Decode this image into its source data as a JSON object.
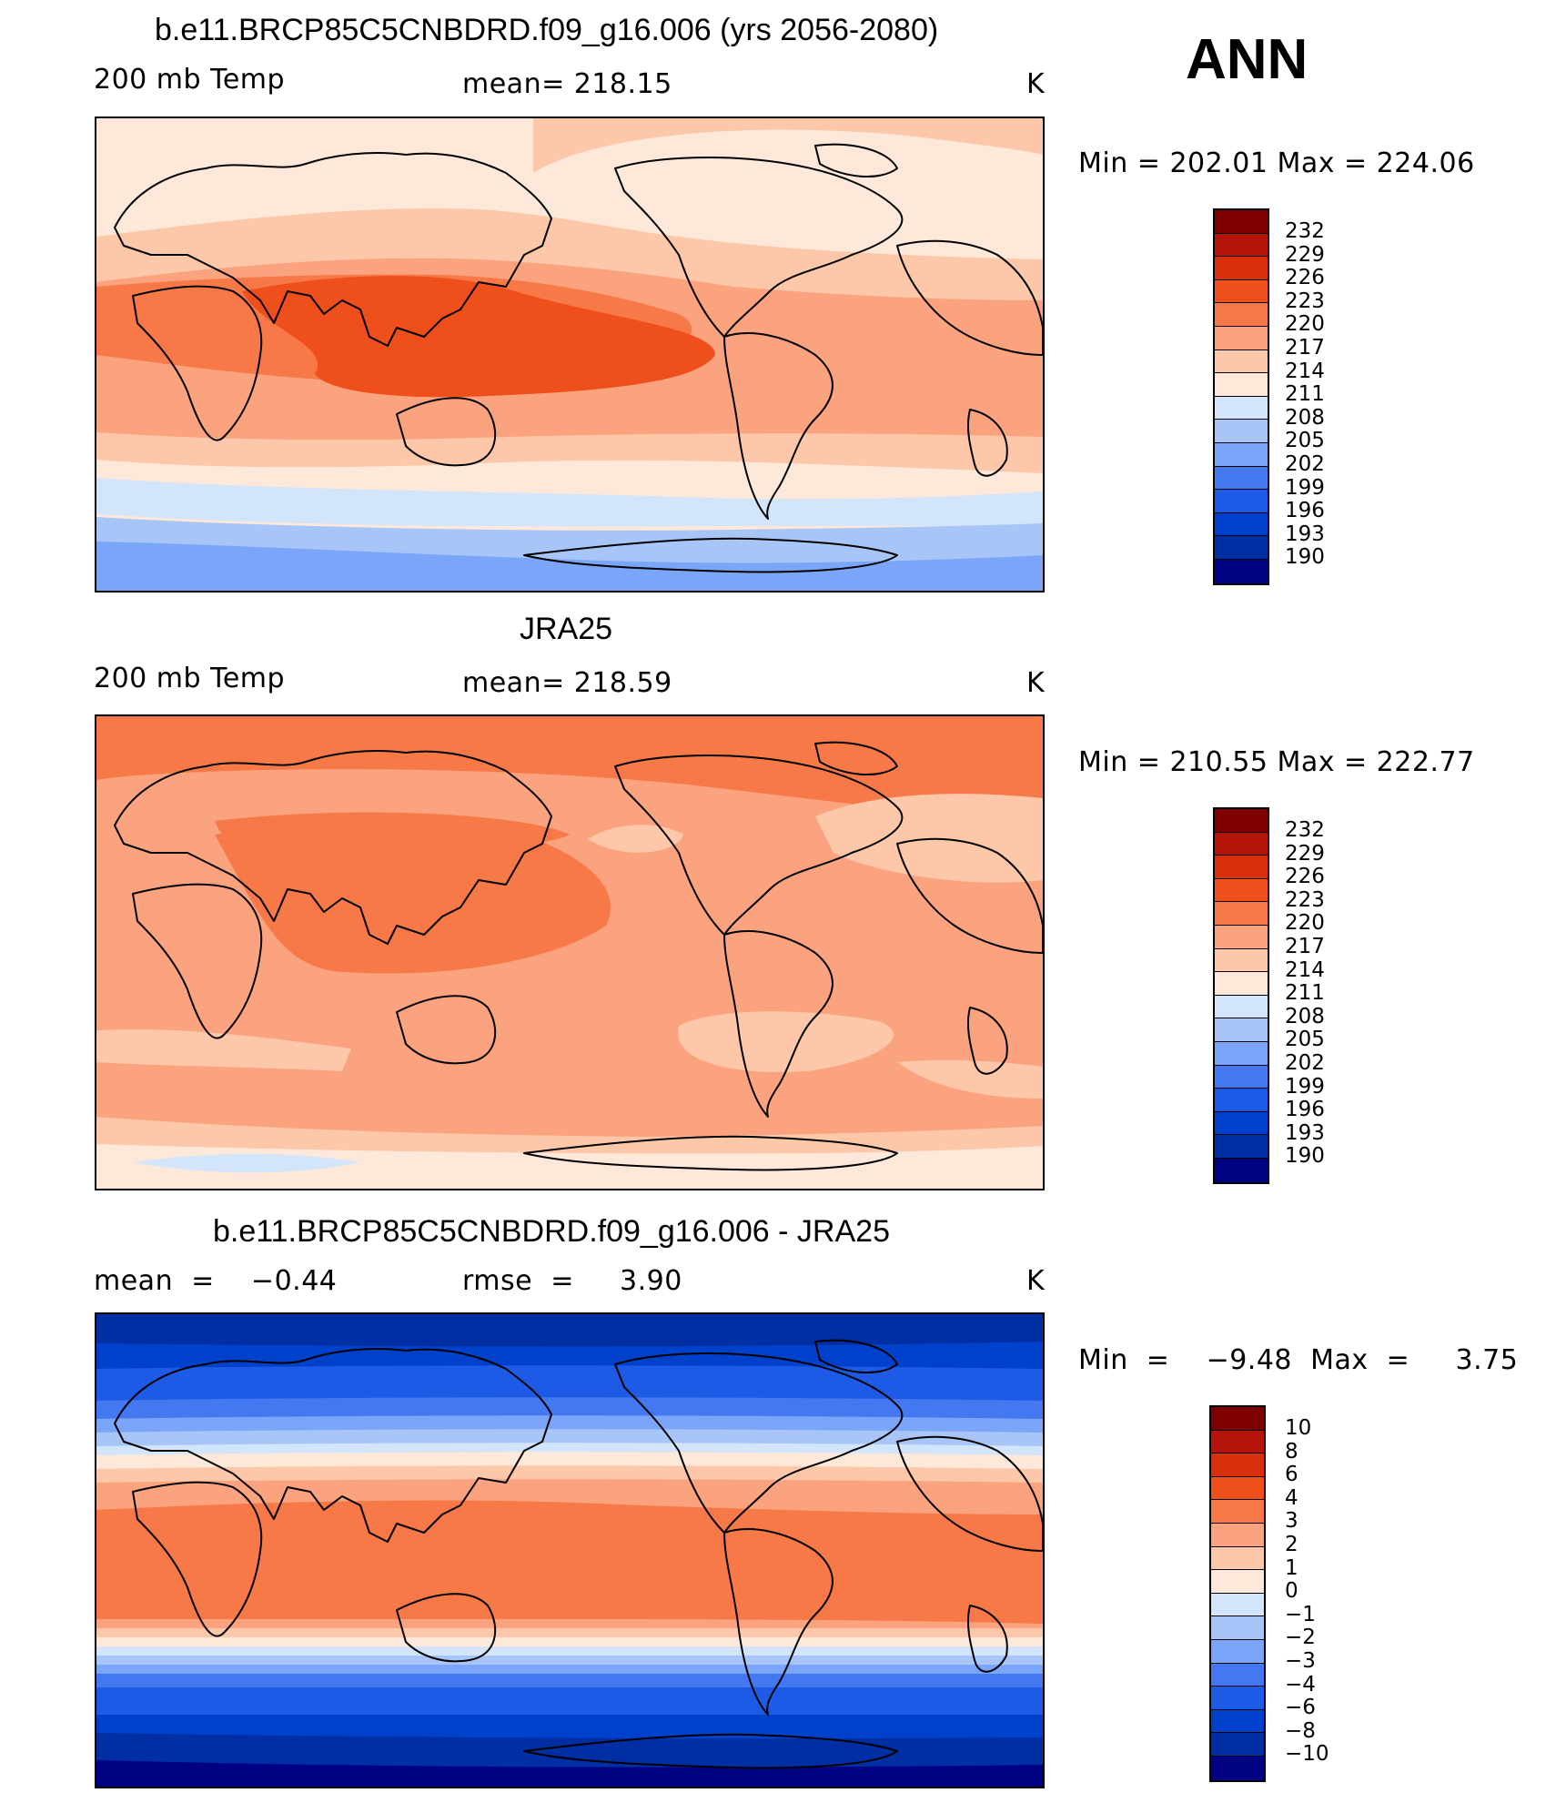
{
  "season": "ANN",
  "colors": {
    "abs": [
      "#000083",
      "#002ea3",
      "#0041cb",
      "#1d5be6",
      "#4478f0",
      "#7aa5f8",
      "#a8c5f8",
      "#d2e5fa",
      "#fde8d9",
      "#fdc7aa",
      "#fba37f",
      "#f77947",
      "#ef4f1a",
      "#d8300b",
      "#b5140b",
      "#7f0000"
    ],
    "diff": [
      "#000083",
      "#002ea3",
      "#0041cb",
      "#1d5be6",
      "#4478f0",
      "#7aa5f8",
      "#a8c5f8",
      "#d2e5fa",
      "#fde8d9",
      "#fdc7aa",
      "#fba37f",
      "#f77947",
      "#ef4f1a",
      "#d8300b",
      "#b5140b",
      "#7f0000"
    ]
  },
  "panels": [
    {
      "title": "b.e11.BRCP85C5CNBDRD.f09_g16.006 (yrs 2056-2080)",
      "left_label": "200 mb Temp",
      "center_label": "mean=  218.15",
      "units": "K",
      "minmax": "Min  =  202.01  Max  =  224.06",
      "colorbar_labels": [
        "232",
        "229",
        "226",
        "223",
        "220",
        "217",
        "214",
        "211",
        "208",
        "205",
        "202",
        "199",
        "196",
        "193",
        "190"
      ]
    },
    {
      "title": "JRA25",
      "left_label": "200 mb Temp",
      "center_label": "mean=  218.59",
      "units": "K",
      "minmax": "Min  =  210.55  Max  =  222.77",
      "colorbar_labels": [
        "232",
        "229",
        "226",
        "223",
        "220",
        "217",
        "214",
        "211",
        "208",
        "205",
        "202",
        "199",
        "196",
        "193",
        "190"
      ]
    },
    {
      "title": "b.e11.BRCP85C5CNBDRD.f09_g16.006 - JRA25",
      "left_label": "mean  =    −0.44",
      "center_label": "rmse  =     3.90",
      "units": "K",
      "minmax": "Min  =    −9.48  Max  =     3.75",
      "colorbar_labels": [
        "10",
        "8",
        "6",
        "4",
        "3",
        "2",
        "1",
        "0",
        "−1",
        "−2",
        "−3",
        "−4",
        "−6",
        "−8",
        "−10"
      ]
    }
  ]
}
